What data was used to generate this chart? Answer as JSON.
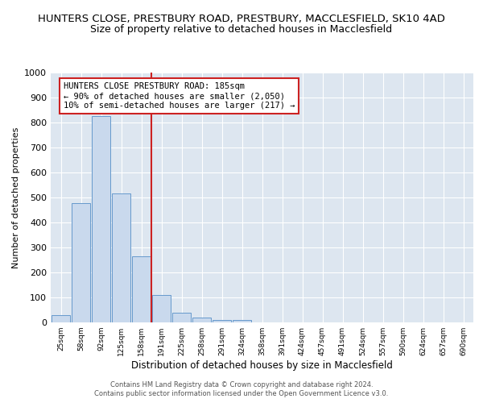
{
  "title": "HUNTERS CLOSE, PRESTBURY ROAD, PRESTBURY, MACCLESFIELD, SK10 4AD",
  "subtitle": "Size of property relative to detached houses in Macclesfield",
  "xlabel": "Distribution of detached houses by size in Macclesfield",
  "ylabel": "Number of detached properties",
  "categories": [
    "25sqm",
    "58sqm",
    "92sqm",
    "125sqm",
    "158sqm",
    "191sqm",
    "225sqm",
    "258sqm",
    "291sqm",
    "324sqm",
    "358sqm",
    "391sqm",
    "424sqm",
    "457sqm",
    "491sqm",
    "524sqm",
    "557sqm",
    "590sqm",
    "624sqm",
    "657sqm",
    "690sqm"
  ],
  "values": [
    30,
    478,
    825,
    515,
    265,
    110,
    38,
    20,
    10,
    10,
    0,
    0,
    0,
    0,
    0,
    0,
    0,
    0,
    0,
    0,
    0
  ],
  "bar_color": "#c9d9ed",
  "bar_edge_color": "#6699cc",
  "vline_color": "#cc2222",
  "vline_position": 4.5,
  "annotation_box_text": "HUNTERS CLOSE PRESTBURY ROAD: 185sqm\n← 90% of detached houses are smaller (2,050)\n10% of semi-detached houses are larger (217) →",
  "annotation_box_edge_color": "#cc2222",
  "ylim": [
    0,
    1000
  ],
  "yticks": [
    0,
    100,
    200,
    300,
    400,
    500,
    600,
    700,
    800,
    900,
    1000
  ],
  "background_color": "#dde6f0",
  "grid_color": "#ffffff",
  "fig_background": "#ffffff",
  "footer_line1": "Contains HM Land Registry data © Crown copyright and database right 2024.",
  "footer_line2": "Contains public sector information licensed under the Open Government Licence v3.0.",
  "title_fontsize": 9.5,
  "subtitle_fontsize": 9
}
